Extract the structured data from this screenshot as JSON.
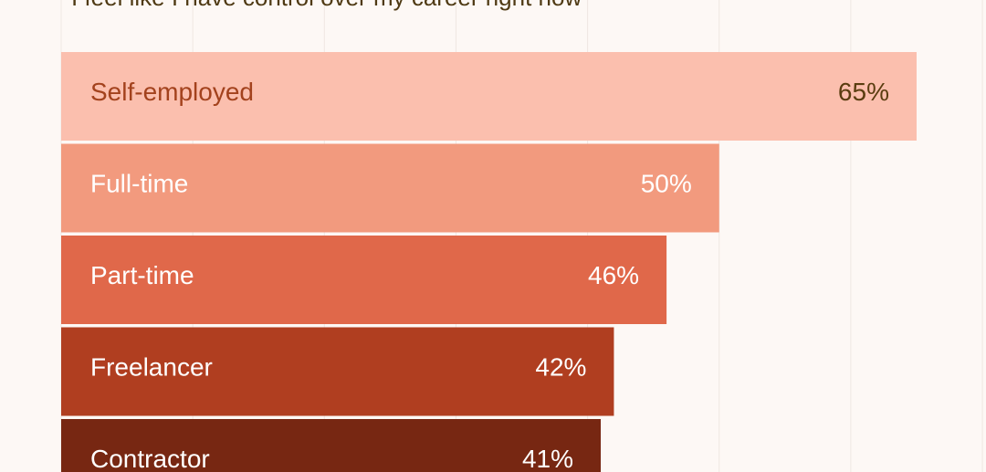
{
  "chart_data": {
    "type": "bar",
    "orientation": "horizontal",
    "title": "I feel like I have control over my career right now",
    "categories": [
      "Self-employed",
      "Full-time",
      "Part-time",
      "Freelancer",
      "Contractor"
    ],
    "values": [
      65,
      50,
      46,
      42,
      41
    ],
    "value_labels": [
      "65%",
      "50%",
      "46%",
      "42%",
      "41%"
    ],
    "xlim": [
      0,
      70
    ],
    "grid": true,
    "colors": [
      "#fbbfae",
      "#f29a7e",
      "#e0684a",
      "#b03e20",
      "#772712"
    ],
    "label_colors": [
      "#a3421d",
      "#ffffff",
      "#ffffff",
      "#ffffff",
      "#ffffff"
    ],
    "value_colors": [
      "#5a3d10",
      "#ffffff",
      "#ffffff",
      "#ffffff",
      "#ffffff"
    ]
  }
}
